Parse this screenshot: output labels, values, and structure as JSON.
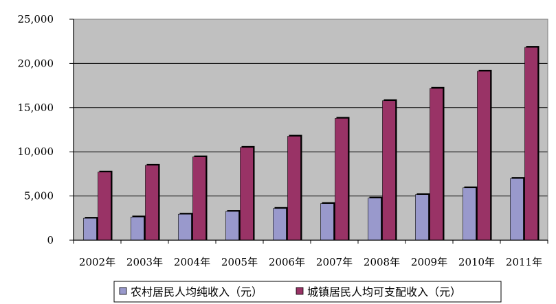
{
  "chart_data": {
    "type": "bar",
    "categories": [
      "2002年",
      "2003年",
      "2004年",
      "2005年",
      "2006年",
      "2007年",
      "2008年",
      "2009年",
      "2010年",
      "2011年"
    ],
    "series": [
      {
        "name": "农村居民人均纯收入（元）",
        "color": "#9999cc",
        "values": [
          2476,
          2622,
          2936,
          3255,
          3587,
          4140,
          4761,
          5153,
          5919,
          6977
        ]
      },
      {
        "name": "城镇居民人均可支配收入（元）",
        "color": "#993366",
        "values": [
          7703,
          8472,
          9422,
          10493,
          11759,
          13786,
          15781,
          17175,
          19109,
          21810
        ]
      }
    ],
    "ylim": [
      0,
      25000
    ],
    "yticks": [
      0,
      5000,
      10000,
      15000,
      20000,
      25000
    ],
    "ytick_labels": [
      "0",
      "5,000",
      "10,000",
      "15,000",
      "20,000",
      "25,000"
    ],
    "grid": true,
    "legend_position": "bottom",
    "plot_background": "#c0c0c0"
  }
}
